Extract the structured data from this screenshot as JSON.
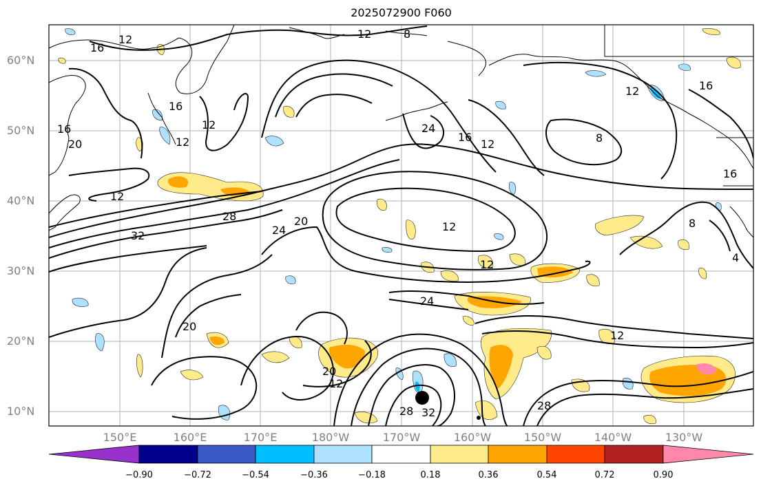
{
  "title": "2025072900 F060",
  "lat_labels": [
    "60°N",
    "50°N",
    "40°N",
    "30°N",
    "20°N",
    "10°N"
  ],
  "lon_labels": [
    "150°E",
    "160°E",
    "170°E",
    "180°W",
    "170°W",
    "160°W",
    "150°W",
    "140°W",
    "130°W"
  ],
  "contour_labels": [
    "12",
    "12",
    "8",
    "16",
    "16",
    "16",
    "20",
    "12",
    "12",
    "24",
    "16",
    "12",
    "12",
    "16",
    "8",
    "16",
    "12",
    "28",
    "32",
    "24",
    "20",
    "12",
    "12",
    "24",
    "20",
    "20",
    "12",
    "12",
    "28",
    "32",
    "28",
    "8",
    "4"
  ],
  "colorbar": {
    "ticks": [
      "−0.90",
      "−0.72",
      "−0.54",
      "−0.36",
      "−0.18",
      "0.18",
      "0.36",
      "0.54",
      "0.72",
      "0.90"
    ],
    "colors": [
      "#9932cc",
      "#00008b",
      "#3a5bc7",
      "#00bfff",
      "#aee0ff",
      "#ffffff",
      "#ffeb8a",
      "#ffa500",
      "#ff4500",
      "#b22222",
      "#ff88aa"
    ]
  },
  "marker": "storm-center-marker"
}
